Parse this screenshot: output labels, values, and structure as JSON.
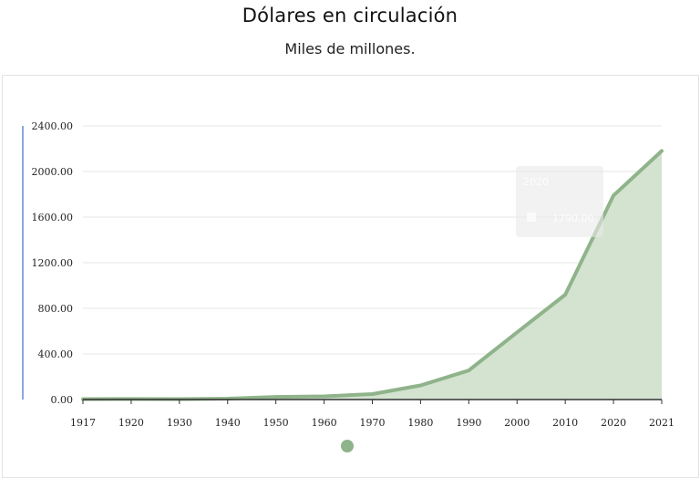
{
  "title": "Dólares en circulación",
  "subtitle": "Miles de millones.",
  "colors": {
    "series": "#8fb38a",
    "area": "#d3e3d0",
    "grid": "#e6e6e6",
    "baseline": "#333333",
    "axis_accent": "#8aa6e0"
  },
  "chart_data": {
    "type": "area",
    "title": "Dólares en circulación",
    "subtitle": "Miles de millones.",
    "xlabel": "",
    "ylabel": "",
    "categories": [
      "1917",
      "1920",
      "1930",
      "1940",
      "1950",
      "1960",
      "1970",
      "1980",
      "1990",
      "2000",
      "2010",
      "2020",
      "2021"
    ],
    "series": [
      {
        "values": [
          4,
          5,
          4,
          8,
          23,
          28,
          48,
          124,
          255,
          590,
          920,
          1790,
          2180
        ]
      }
    ],
    "yticks": [
      "0.00",
      "400.00",
      "800.00",
      "1200.00",
      "1600.00",
      "2000.00",
      "2400.00"
    ],
    "ylim": [
      0,
      2400
    ],
    "grid": true,
    "tooltip": {
      "title": "2020",
      "value": "1790.00"
    },
    "legend_marker": "green-dot"
  }
}
